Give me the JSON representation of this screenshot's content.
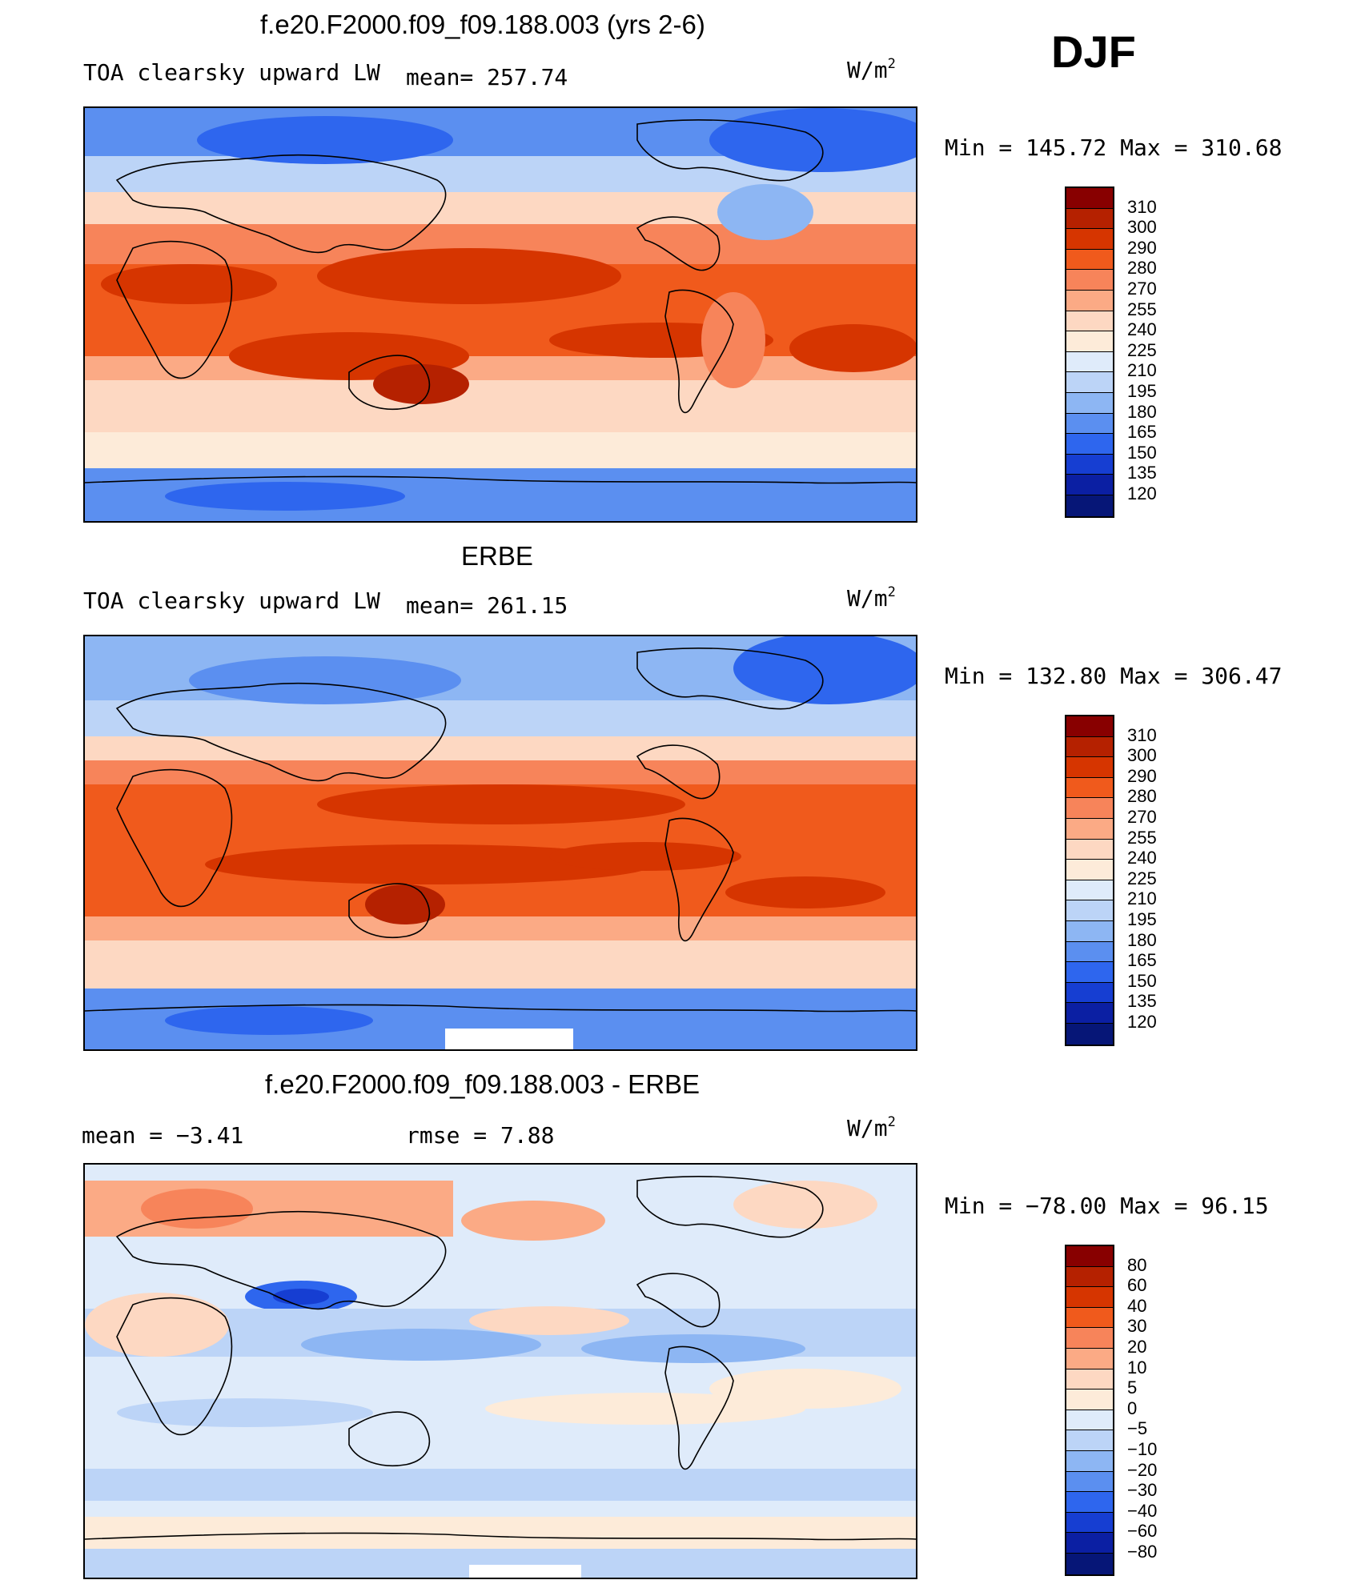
{
  "season": "DJF",
  "units": {
    "base": "W/m",
    "exp": "2"
  },
  "panels": [
    {
      "title": "f.e20.F2000.f09_f09.188.003 (yrs 2-6)",
      "variable": "TOA clearsky upward LW",
      "mean_label": "mean= 257.74",
      "minmax": "Min  =  145.72  Max  =  310.68",
      "colors": [
        "#880000",
        "#b52100",
        "#d63500",
        "#f05a1c",
        "#f7845a",
        "#fbaa85",
        "#fdd8c2",
        "#fdebd9",
        "#dfebfa",
        "#bcd4f7",
        "#8db6f3",
        "#5b8ff0",
        "#2e66ee",
        "#163ed2",
        "#0b1fa3",
        "#061677"
      ],
      "levels": [
        "310",
        "300",
        "290",
        "280",
        "270",
        "255",
        "240",
        "225",
        "210",
        "195",
        "180",
        "165",
        "150",
        "135",
        "120"
      ]
    },
    {
      "title": "ERBE",
      "variable": "TOA clearsky upward LW",
      "mean_label": "mean= 261.15",
      "minmax": "Min  =  132.80  Max  =  306.47",
      "colors": [
        "#880000",
        "#b52100",
        "#d63500",
        "#f05a1c",
        "#f7845a",
        "#fbaa85",
        "#fdd8c2",
        "#fdebd9",
        "#dfebfa",
        "#bcd4f7",
        "#8db6f3",
        "#5b8ff0",
        "#2e66ee",
        "#163ed2",
        "#0b1fa3",
        "#061677"
      ],
      "levels": [
        "310",
        "300",
        "290",
        "280",
        "270",
        "255",
        "240",
        "225",
        "210",
        "195",
        "180",
        "165",
        "150",
        "135",
        "120"
      ]
    },
    {
      "title": "f.e20.F2000.f09_f09.188.003 - ERBE",
      "mean_label": "mean  =    −3.41",
      "rmse_label": "rmse  =    7.88",
      "minmax": "Min  =  −78.00  Max  =   96.15",
      "colors": [
        "#880000",
        "#b52100",
        "#d63500",
        "#f05a1c",
        "#f7845a",
        "#fbaa85",
        "#fdd8c2",
        "#fdebd9",
        "#dfebfa",
        "#bcd4f7",
        "#8db6f3",
        "#5b8ff0",
        "#2e66ee",
        "#163ed2",
        "#0b1fa3",
        "#061677"
      ],
      "levels": [
        "80",
        "60",
        "40",
        "30",
        "20",
        "10",
        "5",
        "0",
        "−5",
        "−10",
        "−20",
        "−30",
        "−40",
        "−60",
        "−80"
      ]
    }
  ]
}
